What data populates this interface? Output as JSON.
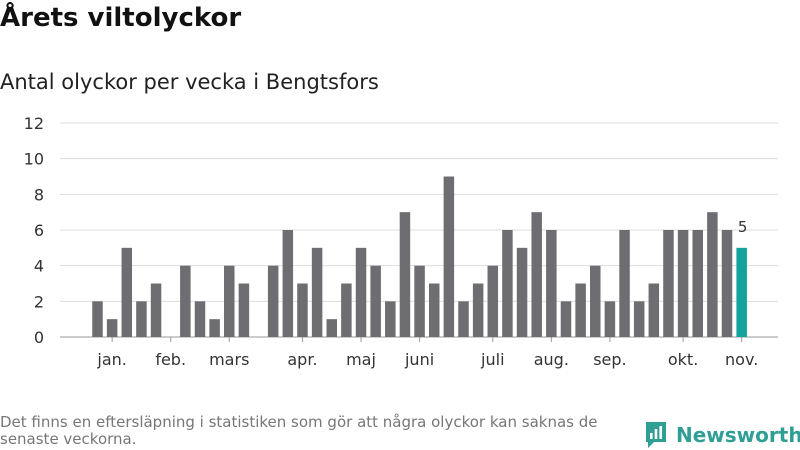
{
  "header": {
    "title": "Årets viltolyckor",
    "subtitle": "Antal olyckor per vecka i Bengtsfors"
  },
  "footer": {
    "note": "Det finns en eftersläpning i statistiken som gör att några olyckor kan saknas de senaste veckorna.",
    "brand": "Newsworthy"
  },
  "colors": {
    "bar": "#6e6d72",
    "highlight": "#12a39b",
    "grid": "#dddddd",
    "brand": "#2f9e94"
  },
  "chart_data": {
    "type": "bar",
    "title": "Antal olyckor per vecka i Bengtsfors",
    "ylim": [
      0,
      12
    ],
    "yticks": [
      0,
      2,
      4,
      6,
      8,
      10,
      12
    ],
    "grid": true,
    "values": [
      2,
      1,
      5,
      2,
      3,
      0,
      4,
      2,
      1,
      4,
      3,
      0,
      4,
      6,
      3,
      5,
      1,
      3,
      5,
      4,
      2,
      7,
      4,
      3,
      9,
      2,
      3,
      4,
      6,
      5,
      7,
      6,
      2,
      3,
      4,
      2,
      6,
      2,
      3,
      6,
      6,
      6,
      7,
      6,
      5
    ],
    "highlight_index": 44,
    "highlight_label": "5",
    "months": [
      {
        "label": "jan.",
        "week": 1
      },
      {
        "label": "feb.",
        "week": 5
      },
      {
        "label": "mars",
        "week": 9
      },
      {
        "label": "apr.",
        "week": 14
      },
      {
        "label": "maj",
        "week": 18
      },
      {
        "label": "juni",
        "week": 22
      },
      {
        "label": "juli",
        "week": 27
      },
      {
        "label": "aug.",
        "week": 31
      },
      {
        "label": "sep.",
        "week": 35
      },
      {
        "label": "okt.",
        "week": 40
      },
      {
        "label": "nov.",
        "week": 44
      }
    ]
  }
}
